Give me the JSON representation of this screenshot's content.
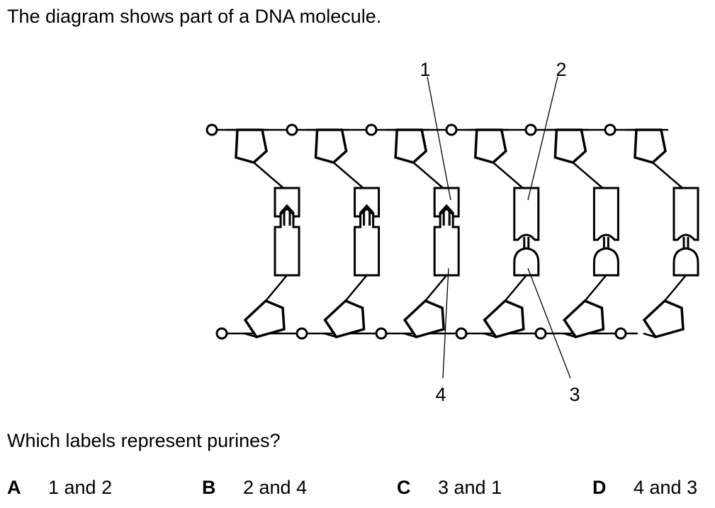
{
  "question": {
    "intro": "The diagram shows part of a DNA molecule.",
    "prompt": "Which labels represent purines?"
  },
  "diagram": {
    "labels": [
      "1",
      "2",
      "3",
      "4"
    ],
    "nucleotide_pairs": [
      {
        "top_base_shape": "purine-arrow-notch",
        "bottom_base_shape": "pyrimidine-arrow-point"
      },
      {
        "top_base_shape": "purine-arrow-notch",
        "bottom_base_shape": "pyrimidine-arrow-point"
      },
      {
        "top_base_shape": "purine-arrow-notch",
        "bottom_base_shape": "pyrimidine-arrow-point"
      },
      {
        "top_base_shape": "rect-cup",
        "bottom_base_shape": "dome-stem"
      },
      {
        "top_base_shape": "rect-cup",
        "bottom_base_shape": "dome-stem"
      },
      {
        "top_base_shape": "rect-cup",
        "bottom_base_shape": "dome-stem"
      }
    ]
  },
  "options": [
    {
      "letter": "A",
      "text": "1 and 2"
    },
    {
      "letter": "B",
      "text": "2 and 4"
    },
    {
      "letter": "C",
      "text": "3 and 1"
    },
    {
      "letter": "D",
      "text": "4 and 3"
    }
  ]
}
